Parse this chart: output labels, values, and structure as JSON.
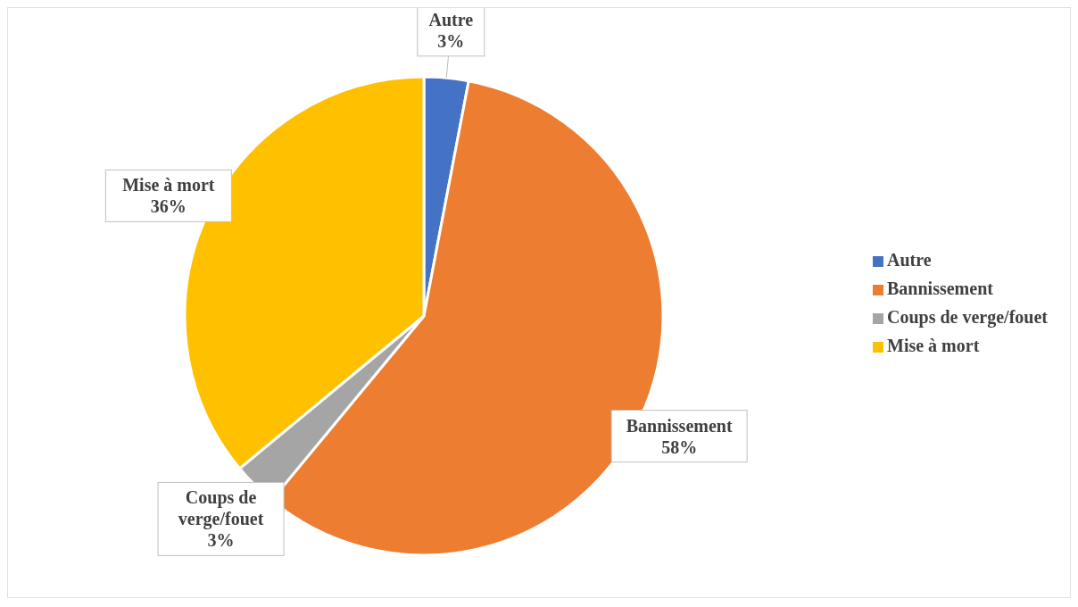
{
  "chart_data": {
    "type": "pie",
    "categories": [
      "Autre",
      "Bannissement",
      "Coups de verge/fouet",
      "Mise à mort"
    ],
    "values": [
      3,
      58,
      3,
      36
    ],
    "colors": [
      "#4472c4",
      "#ed7d31",
      "#a5a5a5",
      "#ffc000"
    ],
    "value_labels": [
      "3%",
      "58%",
      "3%",
      "36%"
    ],
    "legend": "right"
  }
}
